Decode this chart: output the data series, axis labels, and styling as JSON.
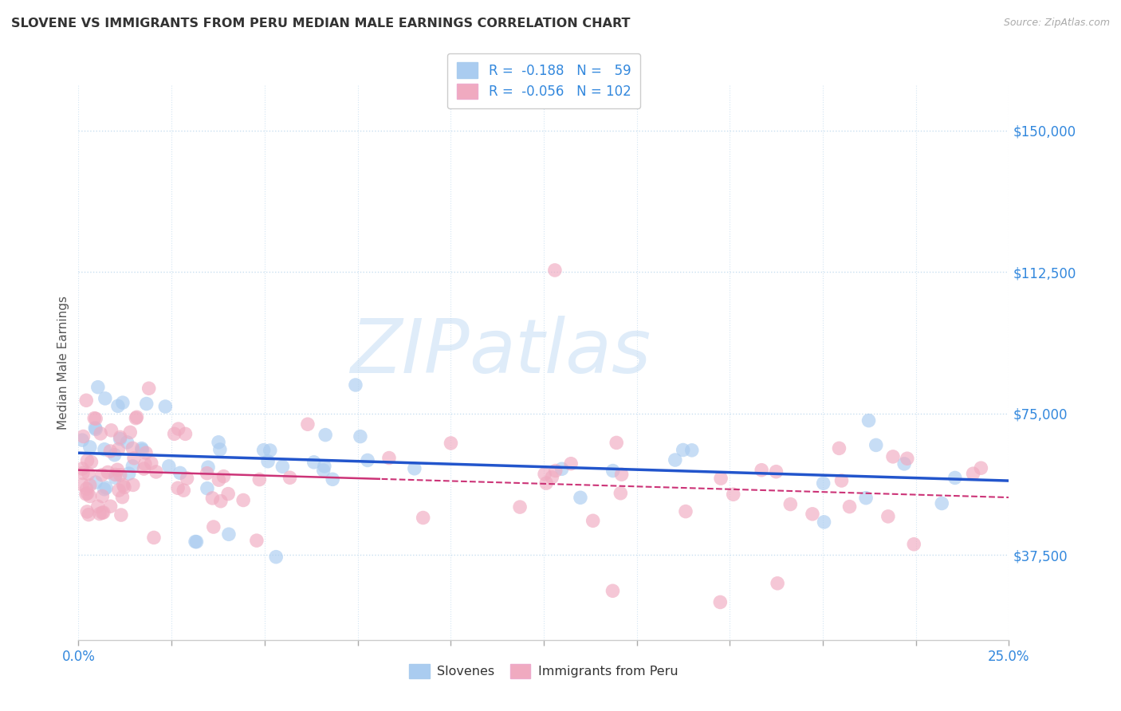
{
  "title": "SLOVENE VS IMMIGRANTS FROM PERU MEDIAN MALE EARNINGS CORRELATION CHART",
  "source": "Source: ZipAtlas.com",
  "ylabel": "Median Male Earnings",
  "ytick_labels": [
    "$37,500",
    "$75,000",
    "$112,500",
    "$150,000"
  ],
  "ytick_values": [
    37500,
    75000,
    112500,
    150000
  ],
  "ymin": 15000,
  "ymax": 162000,
  "xmin": 0.0,
  "xmax": 0.25,
  "color_slovene": "#aaccf0",
  "color_peru": "#f0aac0",
  "line_color_slovene": "#2255cc",
  "line_color_peru": "#cc3377",
  "legend_text_1": "R =  -0.188   N =   59",
  "legend_text_2": "R =  -0.056   N = 102",
  "watermark_zip": "ZIP",
  "watermark_atlas": "atlas",
  "bg_color": "#ffffff",
  "grid_color": "#c8dff0",
  "label_color_blue": "#4499ee",
  "tick_label_color": "#3388dd"
}
